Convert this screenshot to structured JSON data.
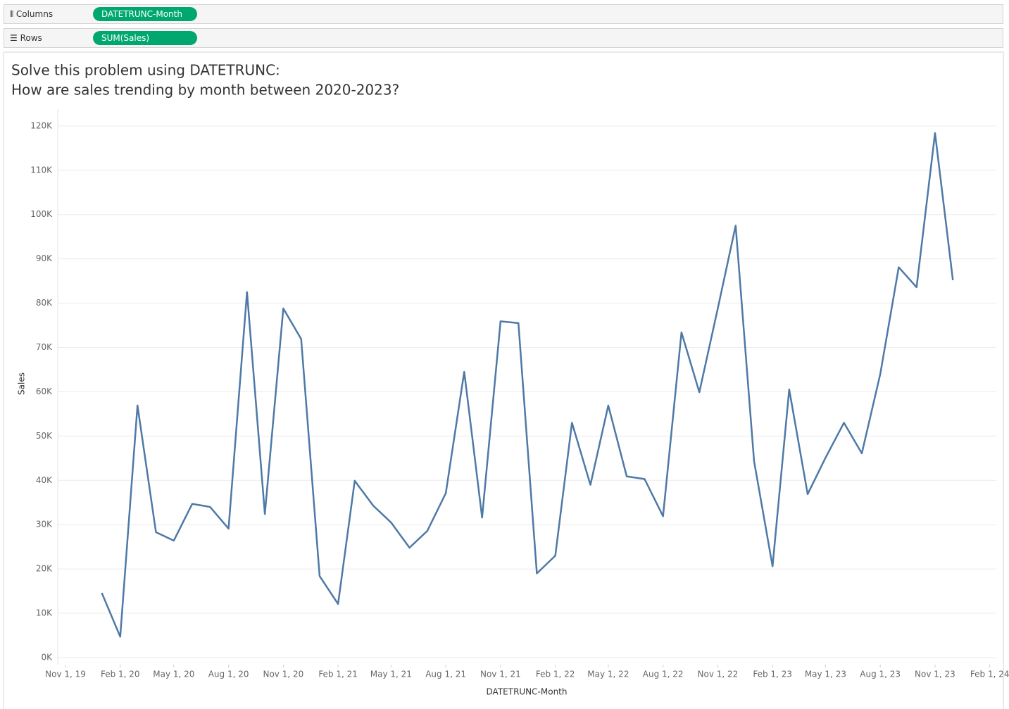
{
  "shelves": {
    "columns": {
      "label": "Columns",
      "pill": "DATETRUNC-Month"
    },
    "rows": {
      "label": "Rows",
      "pill": "SUM(Sales)"
    }
  },
  "chart_data": {
    "type": "line",
    "title": "Solve this problem using DATETRUNC:",
    "subtitle": "How are sales trending by month between 2020-2023?",
    "x_label": "DATETRUNC-Month",
    "y_label": "Sales",
    "x": [
      "2020-01-01",
      "2020-02-01",
      "2020-03-01",
      "2020-04-01",
      "2020-05-01",
      "2020-06-01",
      "2020-07-01",
      "2020-08-01",
      "2020-09-01",
      "2020-10-01",
      "2020-11-01",
      "2020-12-01",
      "2021-01-01",
      "2021-02-01",
      "2021-03-01",
      "2021-04-01",
      "2021-05-01",
      "2021-06-01",
      "2021-07-01",
      "2021-08-01",
      "2021-09-01",
      "2021-10-01",
      "2021-11-01",
      "2021-12-01",
      "2022-01-01",
      "2022-02-01",
      "2022-03-01",
      "2022-04-01",
      "2022-05-01",
      "2022-06-01",
      "2022-07-01",
      "2022-08-01",
      "2022-09-01",
      "2022-10-01",
      "2022-11-01",
      "2022-12-01",
      "2023-01-01",
      "2023-02-01",
      "2023-03-01",
      "2023-04-01",
      "2023-05-01",
      "2023-06-01",
      "2023-07-01",
      "2023-08-01",
      "2023-09-01",
      "2023-10-01",
      "2023-11-01",
      "2023-12-01"
    ],
    "series": [
      {
        "name": "SUM(Sales)",
        "color": "#4e79a7",
        "values": [
          14600,
          4700,
          56900,
          28300,
          26400,
          34700,
          34000,
          29100,
          82500,
          32400,
          78800,
          71900,
          18400,
          12100,
          39900,
          34300,
          30500,
          24800,
          28600,
          37100,
          64500,
          31600,
          75900,
          75500,
          19000,
          23000,
          53000,
          39000,
          56900,
          40900,
          40300,
          31900,
          73400,
          59900,
          78800,
          97500,
          44300,
          20600,
          60500,
          36900,
          45100,
          53000,
          46100,
          64000,
          88100,
          83600,
          118400,
          85200
        ]
      }
    ],
    "xlim": [
      "2019-10-19",
      "2024-02-12"
    ],
    "xticks": [
      {
        "value": "2019-11-01",
        "label": "Nov 1, 19"
      },
      {
        "value": "2020-02-01",
        "label": "Feb 1, 20"
      },
      {
        "value": "2020-05-01",
        "label": "May 1, 20"
      },
      {
        "value": "2020-08-01",
        "label": "Aug 1, 20"
      },
      {
        "value": "2020-11-01",
        "label": "Nov 1, 20"
      },
      {
        "value": "2021-02-01",
        "label": "Feb 1, 21"
      },
      {
        "value": "2021-05-01",
        "label": "May 1, 21"
      },
      {
        "value": "2021-08-01",
        "label": "Aug 1, 21"
      },
      {
        "value": "2021-11-01",
        "label": "Nov 1, 21"
      },
      {
        "value": "2022-02-01",
        "label": "Feb 1, 22"
      },
      {
        "value": "2022-05-01",
        "label": "May 1, 22"
      },
      {
        "value": "2022-08-01",
        "label": "Aug 1, 22"
      },
      {
        "value": "2022-11-01",
        "label": "Nov 1, 22"
      },
      {
        "value": "2023-02-01",
        "label": "Feb 1, 23"
      },
      {
        "value": "2023-05-01",
        "label": "May 1, 23"
      },
      {
        "value": "2023-08-01",
        "label": "Aug 1, 23"
      },
      {
        "value": "2023-11-01",
        "label": "Nov 1, 23"
      },
      {
        "value": "2024-02-01",
        "label": "Feb 1, 24"
      }
    ],
    "ylim": [
      -1600,
      123800
    ],
    "yticks": [
      {
        "value": 0,
        "label": "0K"
      },
      {
        "value": 10000,
        "label": "10K"
      },
      {
        "value": 20000,
        "label": "20K"
      },
      {
        "value": 30000,
        "label": "30K"
      },
      {
        "value": 40000,
        "label": "40K"
      },
      {
        "value": 50000,
        "label": "50K"
      },
      {
        "value": 60000,
        "label": "60K"
      },
      {
        "value": 70000,
        "label": "70K"
      },
      {
        "value": 80000,
        "label": "80K"
      },
      {
        "value": 90000,
        "label": "90K"
      },
      {
        "value": 100000,
        "label": "100K"
      },
      {
        "value": 110000,
        "label": "110K"
      },
      {
        "value": 120000,
        "label": "120K"
      }
    ],
    "grid": true
  }
}
